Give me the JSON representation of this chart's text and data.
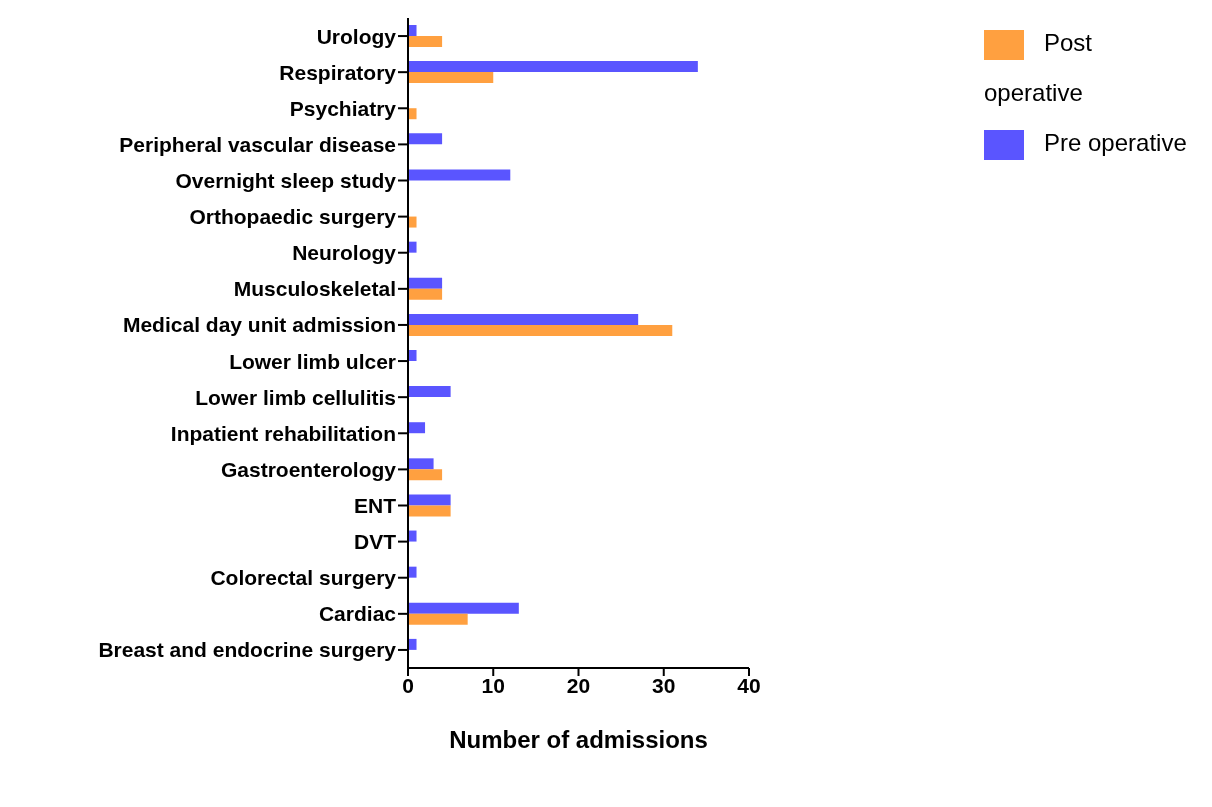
{
  "chart_data": {
    "type": "bar",
    "orientation": "horizontal",
    "xlabel": "Number of admissions",
    "categories": [
      "Urology",
      "Respiratory",
      "Psychiatry",
      "Peripheral vascular disease",
      "Overnight sleep study",
      "Orthopaedic surgery",
      "Neurology",
      "Musculoskeletal",
      "Medical day unit admission",
      "Lower limb ulcer",
      "Lower limb cellulitis",
      "Inpatient rehabilitation",
      "Gastroenterology",
      "ENT",
      "DVT",
      "Colorectal surgery",
      "Cardiac",
      "Breast and endocrine surgery"
    ],
    "series": [
      {
        "name": "Pre operative",
        "color": "#5a55ff",
        "values": [
          1,
          34,
          0,
          4,
          12,
          0,
          1,
          4,
          27,
          1,
          5,
          2,
          3,
          5,
          1,
          1,
          13,
          1
        ]
      },
      {
        "name": "Post operative",
        "color": "#ffa040",
        "values": [
          4,
          10,
          1,
          0,
          0,
          1,
          0,
          4,
          31,
          0,
          0,
          0,
          4,
          5,
          0,
          0,
          7,
          0
        ]
      }
    ],
    "xlim": [
      0,
      40
    ],
    "xticks": [
      0,
      10,
      20,
      30,
      40
    ],
    "grid": false,
    "legend": "top right"
  }
}
